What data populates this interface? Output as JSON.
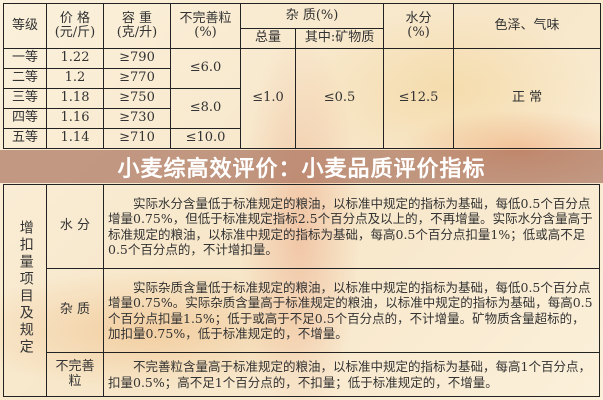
{
  "header": {
    "grade": "等级",
    "price": "价 格\n(元/斤)",
    "density": "容 重\n(克/升)",
    "imperfect": "不完善粒\n(%)",
    "impurity": "杂 质(%)",
    "impurity_total": "总量",
    "impurity_mineral": "其中:矿物质",
    "moisture": "水分\n(%)",
    "color_smell": "色泽、气味"
  },
  "rows": [
    {
      "grade": "一等",
      "price": "1.22",
      "density": "≥790"
    },
    {
      "grade": "二等",
      "price": "1.2",
      "density": "≥770"
    },
    {
      "grade": "三等",
      "price": "1.18",
      "density": "≥750"
    },
    {
      "grade": "四等",
      "price": "1.16",
      "density": "≥730"
    },
    {
      "grade": "五等",
      "price": "1.14",
      "density": "≥710"
    }
  ],
  "imperfect_values": [
    "≤6.0",
    "≤8.0",
    "≤10.0"
  ],
  "impurity_total": "≤1.0",
  "impurity_mineral": "≤0.5",
  "moisture": "≤12.5",
  "color_smell": "正 常",
  "rules": {
    "group_label": "增扣量项目及规定",
    "items": [
      {
        "label": "水 分",
        "text": "实际水分含量低于标准规定的粮油，以标准中规定的指标为基础，每低0.5个百分点增量0.75%，但低于标准规定指标2.5个百分点及以上的，不再增量。实际水分含量高于标准规定的粮油，以标准中规定的指标为基础，每高0.5个百分点扣量1%；低或高不足0.5个百分点的，不计增扣量。"
      },
      {
        "label": "杂 质",
        "text": "实际杂质含量低于标准规定的粮油，以标准中规定的指标为基础，每低0.5个百分点增量0.75%。实际杂质含量高于标准规定的粮油，以标准中规定的指标为基础，每高0.5个百分点扣量1.5%；低于或高于不足0.5个百分点的，不计增量。矿物质含量超标的，加扣量0.75%，低于标准规定的，不增量。"
      },
      {
        "label": "不完善粒",
        "text": "不完善粒含量高于标准规定的粮油，以标准中规定的指标为基础，每高1个百分点，扣量0.5%；高不足1个百分点的，不扣量；低于标准规定的，不增量。"
      }
    ]
  },
  "banner": {
    "title": "小麦综高效评价：小麦品质评价指标"
  }
}
